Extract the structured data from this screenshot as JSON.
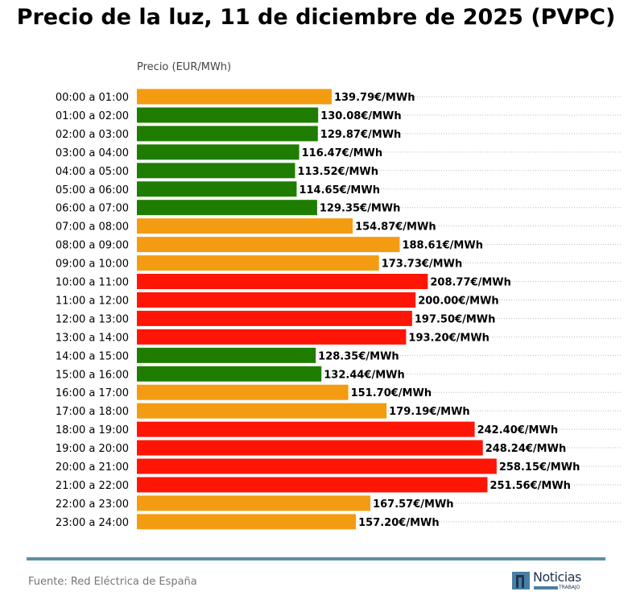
{
  "title": "Precio de la luz, 11 de diciembre de 2025 (PVPC)",
  "source": "Fuente: Red Eléctrica de España",
  "logo": {
    "name": "Noticias",
    "sub": "TRABAJO"
  },
  "colors": {
    "low": "#1e7d00",
    "mid": "#f39c12",
    "high": "#ff1505",
    "rule": "#5b8fa8"
  },
  "chart_data": {
    "type": "bar",
    "orientation": "horizontal",
    "title": "Precio de la luz, 11 de diciembre de 2025 (PVPC)",
    "xlabel": "Precio (EUR/MWh)",
    "ylabel": "",
    "xlim": [
      0,
      350
    ],
    "grid": "dotted horizontal",
    "value_suffix": "€/MWh",
    "categories": [
      "00:00 a 01:00",
      "01:00 a 02:00",
      "02:00 a 03:00",
      "03:00 a 04:00",
      "04:00 a 05:00",
      "05:00 a 06:00",
      "06:00 a 07:00",
      "07:00 a 08:00",
      "08:00 a 09:00",
      "09:00 a 10:00",
      "10:00 a 11:00",
      "11:00 a 12:00",
      "12:00 a 13:00",
      "13:00 a 14:00",
      "14:00 a 15:00",
      "15:00 a 16:00",
      "16:00 a 17:00",
      "17:00 a 18:00",
      "18:00 a 19:00",
      "19:00 a 20:00",
      "20:00 a 21:00",
      "21:00 a 22:00",
      "22:00 a 23:00",
      "23:00 a 24:00"
    ],
    "values": [
      139.79,
      130.08,
      129.87,
      116.47,
      113.52,
      114.65,
      129.35,
      154.87,
      188.61,
      173.73,
      208.77,
      200.0,
      197.5,
      193.2,
      128.35,
      132.44,
      151.7,
      179.19,
      242.4,
      248.24,
      258.15,
      251.56,
      167.57,
      157.2
    ],
    "levels": [
      "mid",
      "low",
      "low",
      "low",
      "low",
      "low",
      "low",
      "mid",
      "mid",
      "mid",
      "high",
      "high",
      "high",
      "high",
      "low",
      "low",
      "mid",
      "mid",
      "high",
      "high",
      "high",
      "high",
      "mid",
      "mid"
    ]
  }
}
